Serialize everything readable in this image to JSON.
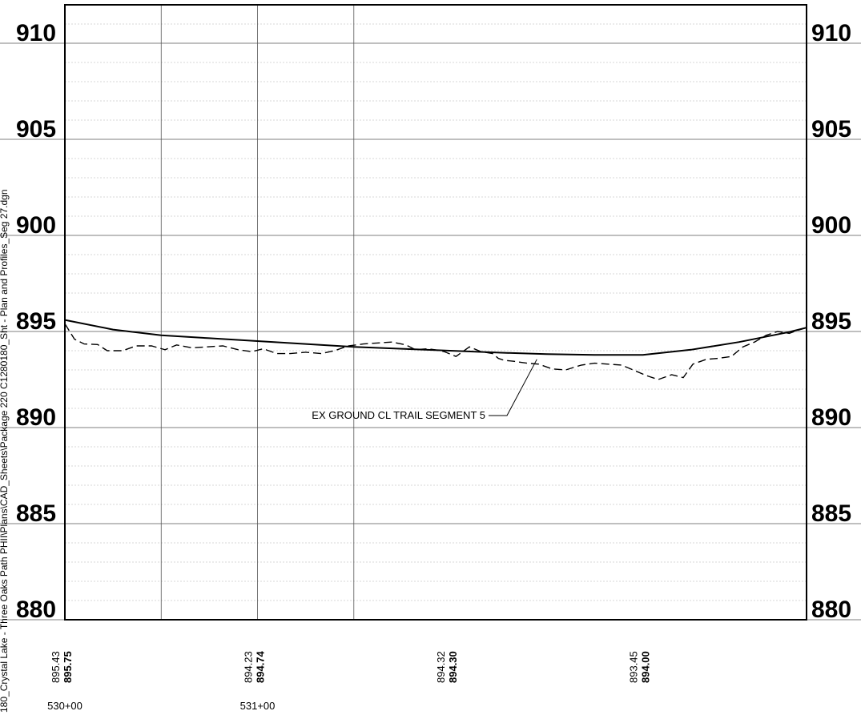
{
  "file_path": "180_Crystal Lake - Three Oaks Path PHII\\Plans\\CAD_Sheets\\Package 220 C1280180_Sht - Plan and Profiles_Seg 27.dgn",
  "chart_data": {
    "type": "line",
    "title": "",
    "xlabel": "",
    "ylabel": "",
    "xlim": [
      53000,
      53385
    ],
    "ylim": [
      880,
      912
    ],
    "y_ticks": [
      880,
      885,
      890,
      895,
      900,
      905,
      910
    ],
    "y_tick_labels": [
      "880",
      "885",
      "890",
      "895",
      "900",
      "905",
      "910"
    ],
    "y_minor_step": 1,
    "x_major_ticks": [
      53000,
      53100
    ],
    "x_major_labels": [
      "530+00",
      "531+00"
    ],
    "x_minor_ticks": [
      53050,
      53150
    ],
    "grid": true,
    "elevation_readouts": [
      {
        "x": 53000,
        "existing": "895.43",
        "proposed": "895.75"
      },
      {
        "x": 53100,
        "existing": "894.23",
        "proposed": "894.74"
      },
      {
        "x": 53200,
        "existing": "894.32",
        "proposed": "894.30"
      },
      {
        "x": 53300,
        "existing": "893.45",
        "proposed": "894.00"
      }
    ],
    "series": [
      {
        "style": "solid",
        "x": [
          53000,
          53025,
          53050,
          53075,
          53100,
          53125,
          53150,
          53175,
          53200,
          53225,
          53250,
          53275,
          53300,
          53325,
          53350,
          53375,
          53385
        ],
        "y": [
          895.6,
          895.1,
          894.8,
          894.65,
          894.5,
          894.35,
          894.2,
          894.1,
          894.0,
          893.9,
          893.82,
          893.78,
          893.78,
          894.05,
          894.45,
          894.95,
          895.2
        ]
      },
      {
        "style": "dashed",
        "x": [
          53000,
          53005,
          53010,
          53017,
          53022,
          53030,
          53037,
          53045,
          53052,
          53058,
          53066,
          53074,
          53082,
          53090,
          53097,
          53103,
          53110,
          53117,
          53125,
          53133,
          53140,
          53147,
          53155,
          53162,
          53170,
          53177,
          53182,
          53188,
          53192,
          53197,
          53203,
          53210,
          53216,
          53222,
          53225,
          53228,
          53233,
          53240,
          53246,
          53253,
          53260,
          53268,
          53275,
          53282,
          53289,
          53295,
          53302,
          53308,
          53315,
          53321,
          53326,
          53333,
          53339,
          53346,
          53352,
          53358,
          53364,
          53370,
          53376,
          53380,
          53385
        ],
        "y": [
          895.4,
          894.6,
          894.35,
          894.32,
          894.0,
          894.0,
          894.25,
          894.25,
          894.05,
          894.3,
          894.15,
          894.2,
          894.25,
          894.05,
          893.95,
          894.1,
          893.85,
          893.85,
          893.92,
          893.85,
          894.0,
          894.25,
          894.35,
          894.4,
          894.45,
          894.3,
          894.05,
          894.1,
          894.05,
          893.95,
          893.7,
          894.2,
          893.95,
          893.85,
          893.6,
          893.5,
          893.45,
          893.35,
          893.3,
          893.05,
          893.0,
          893.25,
          893.35,
          893.3,
          893.25,
          893.0,
          892.7,
          892.5,
          892.75,
          892.6,
          893.3,
          893.55,
          893.6,
          893.7,
          894.2,
          894.45,
          894.8,
          895.0,
          894.9,
          895.05,
          895.2
        ]
      }
    ],
    "annotations": [
      {
        "text": "EX GROUND CL TRAIL SEGMENT 5",
        "points_to": {
          "x": 53245,
          "y": 893.55
        }
      }
    ]
  }
}
